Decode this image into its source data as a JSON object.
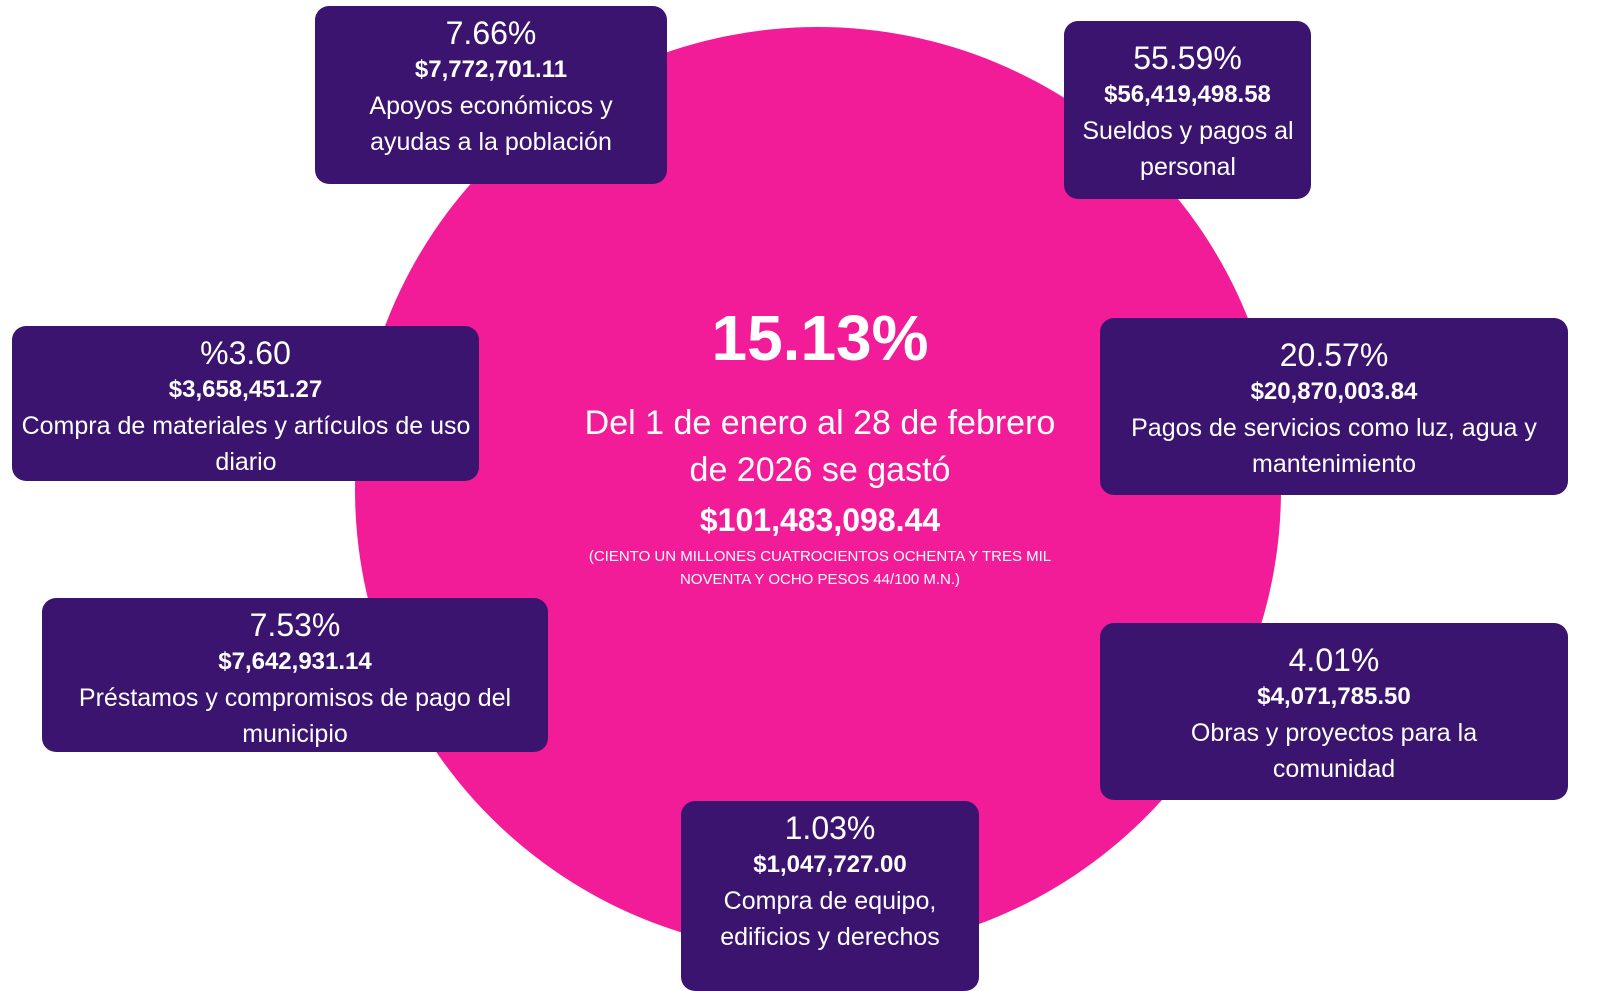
{
  "center": {
    "percent": "15.13%",
    "text": "Del 1 de enero al 28 de febrero de 2026 se gastó",
    "amount": "$101,483,098.44",
    "note": "(CIENTO UN MILLONES CUATROCIENTOS OCHENTA Y TRES MIL NOVENTA Y OCHO PESOS 44/100 M.N.)"
  },
  "boxes": [
    {
      "percent": "7.66%",
      "amount": "$7,772,701.11",
      "label": "Apoyos económicos y ayudas a la población"
    },
    {
      "percent": "55.59%",
      "amount": "$56,419,498.58",
      "label": "Sueldos y pagos al personal"
    },
    {
      "percent": "%3.60",
      "amount": "$3,658,451.27",
      "label": "Compra de materiales y artículos de uso diario"
    },
    {
      "percent": "20.57%",
      "amount": "$20,870,003.84",
      "label": "Pagos de servicios como luz, agua y mantenimiento"
    },
    {
      "percent": "7.53%",
      "amount": "$7,642,931.14",
      "label": "Préstamos y compromisos de pago del municipio"
    },
    {
      "percent": "4.01%",
      "amount": "$4,071,785.50",
      "label": "Obras y proyectos para la comunidad"
    },
    {
      "percent": "1.03%",
      "amount": "$1,047,727.00",
      "label": "Compra de equipo, edificios y derechos"
    }
  ]
}
